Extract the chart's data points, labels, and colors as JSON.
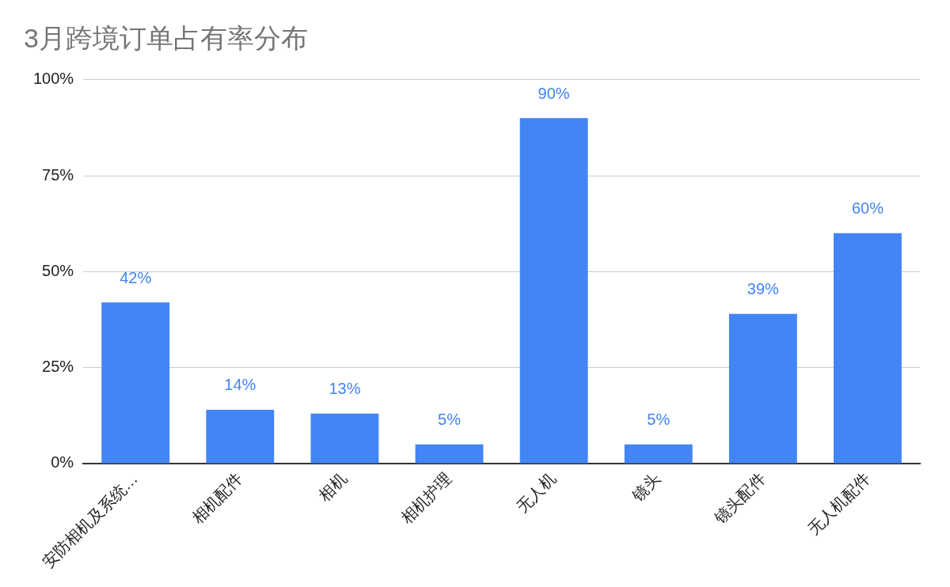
{
  "chart_data": {
    "type": "bar",
    "title": "3月跨境订单占有率分布",
    "categories": [
      "安防相机及系统…",
      "相机配件",
      "相机",
      "相机护理",
      "无人机",
      "镜头",
      "镜头配件",
      "无人机配件"
    ],
    "values": [
      42,
      14,
      13,
      5,
      90,
      5,
      39,
      60
    ],
    "value_labels": [
      "42%",
      "14%",
      "13%",
      "5%",
      "90%",
      "5%",
      "39%",
      "60%"
    ],
    "color": "#4285f4",
    "ylim": [
      0,
      100
    ],
    "yticks": [
      {
        "value": 0,
        "label": "0%"
      },
      {
        "value": 25,
        "label": "25%"
      },
      {
        "value": 50,
        "label": "50%"
      },
      {
        "value": 75,
        "label": "75%"
      },
      {
        "value": 100,
        "label": "100%"
      }
    ],
    "grid": "y",
    "legend": false
  }
}
